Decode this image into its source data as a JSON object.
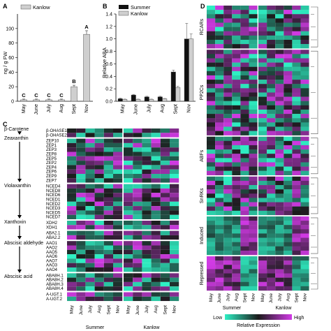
{
  "chart_data": [
    {
      "panel": "A",
      "type": "bar",
      "ylabel": "ng / g FW",
      "ylim": [
        0,
        120
      ],
      "yticks": [
        0,
        20,
        40,
        60,
        80,
        100
      ],
      "categories": [
        "May",
        "June",
        "July",
        "Aug",
        "Sept",
        "Nov"
      ],
      "series": [
        {
          "name": "Kanlow",
          "values": [
            2,
            2,
            2,
            2,
            20,
            92
          ],
          "errors": [
            1,
            1,
            1,
            1,
            2,
            5
          ]
        }
      ],
      "significance_letters": [
        "C",
        "C",
        "C",
        "C",
        "B",
        "A"
      ],
      "legend_position": "top-left",
      "colors": {
        "Kanlow": "#cfcfcf"
      }
    },
    {
      "panel": "B",
      "type": "bar",
      "ylabel": "Relative ABA",
      "ylim": [
        0,
        1.4
      ],
      "yticks": [
        "0.0",
        "0.2",
        "0.4",
        "0.6",
        "0.8",
        "1.0",
        "1.2",
        "1.4"
      ],
      "categories": [
        "May",
        "June",
        "July",
        "Aug",
        "Sept",
        "Nov"
      ],
      "series": [
        {
          "name": "Summer",
          "values": [
            0.04,
            0.1,
            0.07,
            0.07,
            0.47,
            1.0
          ],
          "errors": [
            0.01,
            0.01,
            0.01,
            0.01,
            0.03,
            0.25
          ]
        },
        {
          "name": "Kanlow",
          "values": [
            0.03,
            0.03,
            0.03,
            0.04,
            0.22,
            1.0
          ],
          "errors": [
            0.005,
            0.005,
            0.005,
            0.005,
            0.02,
            0.08
          ]
        }
      ],
      "legend_position": "top-left",
      "colors": {
        "Summer": "#111111",
        "Kanlow": "#cfcfcf"
      }
    },
    {
      "panel": "C",
      "type": "heatmap",
      "pathway": [
        "β-Carotene",
        "Zeaxanthin",
        "Violaxanthin",
        "Xanthoxin",
        "Abscisic aldehyde",
        "Abscisic acid"
      ],
      "gene_groups": [
        {
          "genes": [
            "β-OHASE1",
            "β-OHASE2"
          ]
        },
        {
          "genes": [
            "ZEP10",
            "ZEP1",
            "ZEP3",
            "ZEP8",
            "ZEP5",
            "ZEP2",
            "ZEP4",
            "ZEP6",
            "ZEP9",
            "ZEP7"
          ]
        },
        {
          "genes": [
            "NCED4",
            "NCED8",
            "NCED6",
            "NCED1",
            "NCED2",
            "NCED3",
            "NCED5",
            "NCED7"
          ]
        },
        {
          "genes": [
            "XDH2",
            "XDH1"
          ]
        },
        {
          "genes": [
            "ABA2.1",
            "ABA2.2"
          ]
        },
        {
          "genes": [
            "AAO1",
            "AAO2",
            "AAO5",
            "AAO6",
            "AAO7",
            "AAO3",
            "AAO4"
          ]
        },
        {
          "genes": [
            "ABA8H.1",
            "ABA8H.2",
            "ABA8H.3",
            "ABA8H.4"
          ]
        },
        {
          "genes": [
            "A-UGT.1",
            "A-UGT.2"
          ]
        }
      ],
      "columns": [
        "May",
        "June",
        "July",
        "Aug",
        "Sept",
        "Nov"
      ],
      "blocks": [
        "Summer",
        "Kanlow"
      ]
    },
    {
      "panel": "D",
      "type": "heatmap",
      "row_groups": [
        "RCARs",
        "PP2Cs",
        "ABFs",
        "SnRKs",
        "Induced",
        "Repressed"
      ],
      "row_counts": [
        10,
        20,
        9,
        9,
        9,
        8
      ],
      "columns": [
        "May",
        "June",
        "July",
        "Aug",
        "Sept",
        "Nov"
      ],
      "blocks": [
        "Summer",
        "Kanlow"
      ],
      "colorbar": {
        "low_label": "Low",
        "high_label": "High",
        "title": "Relative Expression",
        "colors": [
          "#2ef0c4",
          "#1b1b1b",
          "#d23ae6"
        ]
      }
    }
  ]
}
